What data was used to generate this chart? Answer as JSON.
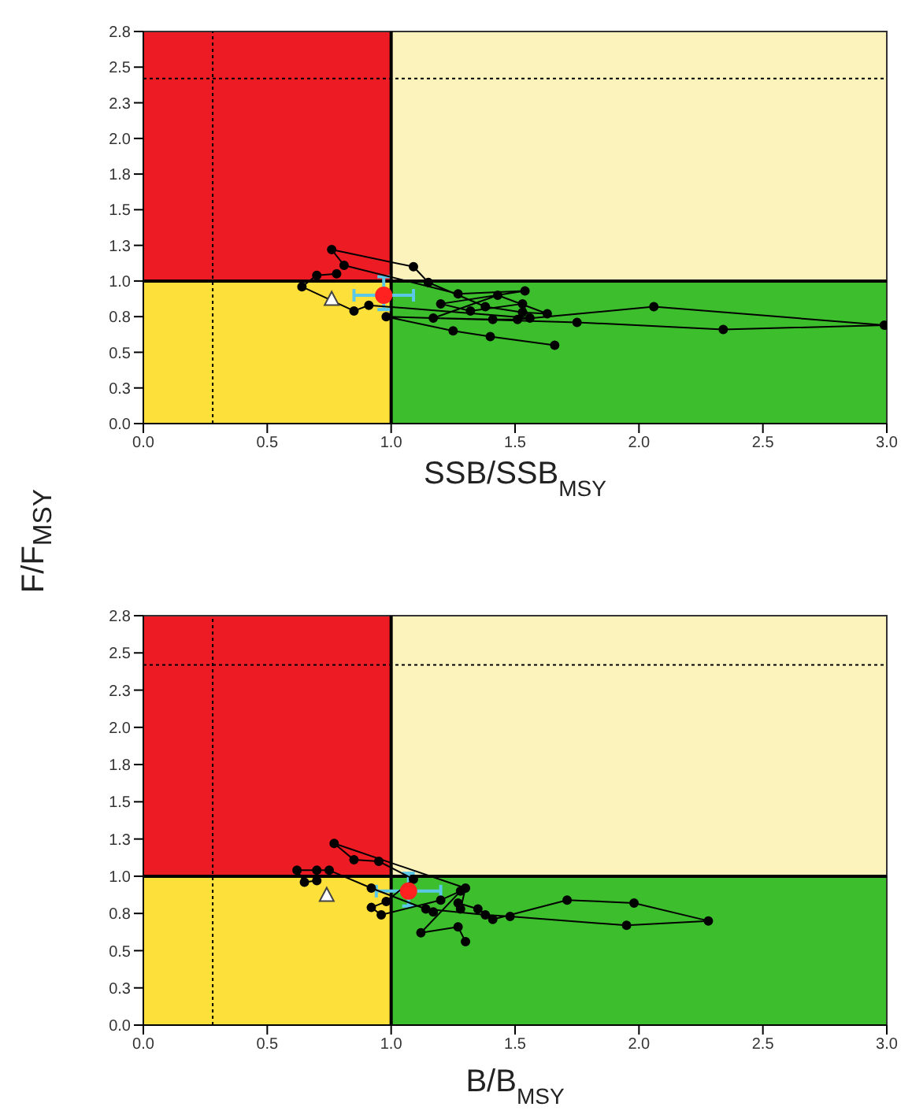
{
  "chart_data": [
    {
      "type": "line",
      "xlabel": "SSB/SSB$_{MSY}$",
      "ylabel": "F/F$_{MSY}$",
      "xlim": [
        0,
        3
      ],
      "ylim": [
        0,
        2.75
      ],
      "xticks": [
        {
          "value": 0,
          "label": "0.0"
        },
        {
          "value": 0.5,
          "label": "0.5"
        },
        {
          "value": 1,
          "label": "1.0"
        },
        {
          "value": 1.5,
          "label": "1.5"
        },
        {
          "value": 2,
          "label": "2.0"
        },
        {
          "value": 2.5,
          "label": "2.5"
        },
        {
          "value": 3,
          "label": "3.0"
        }
      ],
      "yticks": [
        {
          "value": 0,
          "label": "0.0"
        },
        {
          "value": 0.25,
          "label": "0.3"
        },
        {
          "value": 0.5,
          "label": "0.5"
        },
        {
          "value": 0.75,
          "label": "0.8"
        },
        {
          "value": 1,
          "label": "1.0"
        },
        {
          "value": 1.25,
          "label": "1.3"
        },
        {
          "value": 1.5,
          "label": "1.5"
        },
        {
          "value": 1.75,
          "label": "1.8"
        },
        {
          "value": 2,
          "label": "2.0"
        },
        {
          "value": 2.25,
          "label": "2.3"
        },
        {
          "value": 2.5,
          "label": "2.5"
        },
        {
          "value": 2.75,
          "label": "2.8"
        }
      ],
      "ref_lines": [
        {
          "axis": "x",
          "value": 1,
          "line_style": "solid",
          "color": "#000000"
        },
        {
          "axis": "y",
          "value": 1,
          "line_style": "solid",
          "color": "#000000"
        },
        {
          "axis": "x",
          "value": 0.28,
          "line_style": "dotted",
          "color": "#000000"
        },
        {
          "axis": "y",
          "value": 2.42,
          "line_style": "dotted",
          "color": "#000000"
        }
      ],
      "series": [
        {
          "type": "line",
          "color": "#000000",
          "marker": "circle",
          "x": [
            1.66,
            1.4,
            1.25,
            0.98,
            1.75,
            2.34,
            2.99,
            2.06,
            1.51,
            1.41,
            1.17,
            1.43,
            1.63,
            1.53,
            1.38,
            1.15,
            1.09,
            0.76,
            0.81,
            1.27,
            1.54,
            1.2,
            1.32,
            1.53,
            1.56,
            0.91,
            0.85,
            0.64,
            0.7,
            0.78
          ],
          "values": [
            0.55,
            0.61,
            0.65,
            0.75,
            0.71,
            0.66,
            0.69,
            0.82,
            0.73,
            0.73,
            0.74,
            0.9,
            0.77,
            0.78,
            0.82,
            0.99,
            1.1,
            1.22,
            1.11,
            0.91,
            0.93,
            0.84,
            0.79,
            0.84,
            0.74,
            0.83,
            0.79,
            0.96,
            1.04,
            1.05
          ]
        },
        {
          "type": "scatter",
          "color": "#ffffff",
          "marker": "triangle",
          "x": [
            0.76
          ],
          "values": [
            0.87
          ]
        },
        {
          "type": "scatter",
          "color": "#ff2020",
          "marker": "circle",
          "x": [
            0.97
          ],
          "values": [
            0.9
          ],
          "errors": [
            [
              0.8,
              1.03
            ]
          ],
          "xerrors": [
            [
              0.85,
              1.09
            ]
          ]
        }
      ]
    },
    {
      "type": "line",
      "xlabel": "B/B$_{MSY}$",
      "xlim": [
        0,
        3
      ],
      "ylim": [
        0,
        2.75
      ],
      "xticks": [
        {
          "value": 0,
          "label": "0.0"
        },
        {
          "value": 0.5,
          "label": "0.5"
        },
        {
          "value": 1,
          "label": "1.0"
        },
        {
          "value": 1.5,
          "label": "1.5"
        },
        {
          "value": 2,
          "label": "2.0"
        },
        {
          "value": 2.5,
          "label": "2.5"
        },
        {
          "value": 3,
          "label": "3.0"
        }
      ],
      "yticks": [
        {
          "value": 0,
          "label": "0.0"
        },
        {
          "value": 0.25,
          "label": "0.3"
        },
        {
          "value": 0.5,
          "label": "0.5"
        },
        {
          "value": 0.75,
          "label": "0.8"
        },
        {
          "value": 1,
          "label": "1.0"
        },
        {
          "value": 1.25,
          "label": "1.3"
        },
        {
          "value": 1.5,
          "label": "1.5"
        },
        {
          "value": 1.75,
          "label": "1.8"
        },
        {
          "value": 2,
          "label": "2.0"
        },
        {
          "value": 2.25,
          "label": "2.3"
        },
        {
          "value": 2.5,
          "label": "2.5"
        },
        {
          "value": 2.75,
          "label": "2.8"
        }
      ],
      "ref_lines": [
        {
          "axis": "x",
          "value": 1,
          "line_style": "solid",
          "color": "#000000"
        },
        {
          "axis": "y",
          "value": 1,
          "line_style": "solid",
          "color": "#000000"
        },
        {
          "axis": "x",
          "value": 0.28,
          "line_style": "dotted",
          "color": "#000000"
        },
        {
          "axis": "y",
          "value": 2.42,
          "line_style": "dotted",
          "color": "#000000"
        }
      ],
      "series": [
        {
          "type": "line",
          "color": "#000000",
          "marker": "circle",
          "x": [
            1.3,
            1.27,
            1.12,
            1.28,
            1.2,
            0.96,
            0.92,
            0.98,
            1.09,
            0.95,
            0.85,
            0.77,
            1.3,
            1.28,
            1.27,
            1.35,
            1.41,
            1.71,
            1.98,
            2.28,
            1.95,
            1.48,
            1.38,
            1.14,
            1.17,
            0.92,
            0.75,
            0.7,
            0.62,
            0.65,
            0.7
          ],
          "values": [
            0.56,
            0.66,
            0.62,
            0.9,
            0.84,
            0.74,
            0.79,
            0.83,
            0.98,
            1.1,
            1.11,
            1.22,
            0.92,
            0.78,
            0.82,
            0.78,
            0.71,
            0.84,
            0.82,
            0.7,
            0.67,
            0.73,
            0.74,
            0.78,
            0.76,
            0.92,
            1.04,
            1.04,
            1.04,
            0.96,
            0.97
          ]
        },
        {
          "type": "scatter",
          "color": "#ffffff",
          "marker": "triangle",
          "x": [
            0.74
          ],
          "values": [
            0.87
          ]
        },
        {
          "type": "scatter",
          "color": "#ff2020",
          "marker": "circle",
          "x": [
            1.07
          ],
          "values": [
            0.9
          ],
          "errors": [
            [
              0.8,
              1.02
            ]
          ],
          "xerrors": [
            [
              0.94,
              1.2
            ]
          ]
        }
      ]
    }
  ]
}
